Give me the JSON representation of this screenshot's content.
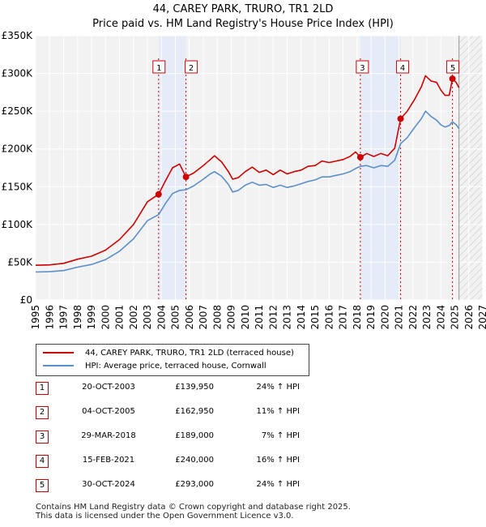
{
  "chart_data": {
    "type": "line",
    "title": "44, CAREY PARK, TRURO, TR1 2LD",
    "subtitle": "Price paid vs. HM Land Registry's House Price Index (HPI)",
    "xlabel": "",
    "ylabel": "",
    "xlim": [
      1995,
      2027
    ],
    "ylim": [
      0,
      350000
    ],
    "y_ticks": [
      0,
      50000,
      100000,
      150000,
      200000,
      250000,
      300000,
      350000
    ],
    "y_tick_labels": [
      "£0",
      "£50K",
      "£100K",
      "£150K",
      "£200K",
      "£250K",
      "£300K",
      "£350K"
    ],
    "x_ticks": [
      1995,
      1996,
      1997,
      1998,
      1999,
      2000,
      2001,
      2002,
      2003,
      2004,
      2005,
      2006,
      2007,
      2008,
      2009,
      2010,
      2011,
      2012,
      2013,
      2014,
      2015,
      2016,
      2017,
      2018,
      2019,
      2020,
      2021,
      2022,
      2023,
      2024,
      2025,
      2026,
      2027
    ],
    "grid": true,
    "forecast_start": 2025.3,
    "shaded_periods": [
      [
        2003.8,
        2005.76
      ],
      [
        2018.24,
        2021.12
      ]
    ],
    "series": [
      {
        "name": "44, CAREY PARK, TRURO, TR1 2LD (terraced house)",
        "color": "#cc0000",
        "points": [
          [
            1995.0,
            46000
          ],
          [
            1996.0,
            46500
          ],
          [
            1997.0,
            48500
          ],
          [
            1998.0,
            54000
          ],
          [
            1999.0,
            58000
          ],
          [
            2000.0,
            66000
          ],
          [
            2001.0,
            80000
          ],
          [
            2002.0,
            100000
          ],
          [
            2003.0,
            130000
          ],
          [
            2003.8,
            139950
          ],
          [
            2004.3,
            158000
          ],
          [
            2004.8,
            175000
          ],
          [
            2005.3,
            180000
          ],
          [
            2005.76,
            162950
          ],
          [
            2006.3,
            168000
          ],
          [
            2007.0,
            178000
          ],
          [
            2007.5,
            186000
          ],
          [
            2007.8,
            191000
          ],
          [
            2008.3,
            183000
          ],
          [
            2008.8,
            170000
          ],
          [
            2009.1,
            160000
          ],
          [
            2009.5,
            162000
          ],
          [
            2010.0,
            170000
          ],
          [
            2010.5,
            176000
          ],
          [
            2011.0,
            169000
          ],
          [
            2011.5,
            172000
          ],
          [
            2012.0,
            166000
          ],
          [
            2012.5,
            172000
          ],
          [
            2013.0,
            167000
          ],
          [
            2013.5,
            170000
          ],
          [
            2014.0,
            172000
          ],
          [
            2014.5,
            177000
          ],
          [
            2015.0,
            178000
          ],
          [
            2015.5,
            184000
          ],
          [
            2016.0,
            182000
          ],
          [
            2016.5,
            184000
          ],
          [
            2017.0,
            186000
          ],
          [
            2017.5,
            190000
          ],
          [
            2017.9,
            196000
          ],
          [
            2018.24,
            189000
          ],
          [
            2018.7,
            194000
          ],
          [
            2019.2,
            190000
          ],
          [
            2019.7,
            194000
          ],
          [
            2020.2,
            191000
          ],
          [
            2020.7,
            201000
          ],
          [
            2021.12,
            240000
          ],
          [
            2021.6,
            250000
          ],
          [
            2022.1,
            265000
          ],
          [
            2022.6,
            282000
          ],
          [
            2022.9,
            297000
          ],
          [
            2023.3,
            290000
          ],
          [
            2023.7,
            288000
          ],
          [
            2024.0,
            278000
          ],
          [
            2024.3,
            271000
          ],
          [
            2024.6,
            271000
          ],
          [
            2024.83,
            293000
          ],
          [
            2025.1,
            288000
          ],
          [
            2025.3,
            281000
          ]
        ]
      },
      {
        "name": "HPI: Average price, terraced house, Cornwall",
        "color": "#5b8fc9",
        "points": [
          [
            1995.0,
            37000
          ],
          [
            1996.0,
            37500
          ],
          [
            1997.0,
            39000
          ],
          [
            1998.0,
            43500
          ],
          [
            1999.0,
            47000
          ],
          [
            2000.0,
            53500
          ],
          [
            2001.0,
            64500
          ],
          [
            2002.0,
            81000
          ],
          [
            2003.0,
            105000
          ],
          [
            2003.8,
            113000
          ],
          [
            2004.3,
            128000
          ],
          [
            2004.8,
            141000
          ],
          [
            2005.3,
            145000
          ],
          [
            2005.76,
            146000
          ],
          [
            2006.3,
            151000
          ],
          [
            2007.0,
            160000
          ],
          [
            2007.5,
            167000
          ],
          [
            2007.8,
            170000
          ],
          [
            2008.3,
            164000
          ],
          [
            2008.8,
            153000
          ],
          [
            2009.1,
            143000
          ],
          [
            2009.5,
            145000
          ],
          [
            2010.0,
            152000
          ],
          [
            2010.5,
            156000
          ],
          [
            2011.0,
            152000
          ],
          [
            2011.5,
            153000
          ],
          [
            2012.0,
            149000
          ],
          [
            2012.5,
            152000
          ],
          [
            2013.0,
            149000
          ],
          [
            2013.5,
            151000
          ],
          [
            2014.0,
            154000
          ],
          [
            2014.5,
            157000
          ],
          [
            2015.0,
            159000
          ],
          [
            2015.5,
            163000
          ],
          [
            2016.0,
            163000
          ],
          [
            2016.5,
            165000
          ],
          [
            2017.0,
            167000
          ],
          [
            2017.5,
            170000
          ],
          [
            2017.9,
            174000
          ],
          [
            2018.24,
            177000
          ],
          [
            2018.7,
            178000
          ],
          [
            2019.2,
            175000
          ],
          [
            2019.7,
            178000
          ],
          [
            2020.2,
            177000
          ],
          [
            2020.7,
            185000
          ],
          [
            2021.12,
            207000
          ],
          [
            2021.6,
            215000
          ],
          [
            2022.1,
            228000
          ],
          [
            2022.6,
            240000
          ],
          [
            2022.9,
            250000
          ],
          [
            2023.3,
            243000
          ],
          [
            2023.7,
            238000
          ],
          [
            2024.0,
            232000
          ],
          [
            2024.3,
            229000
          ],
          [
            2024.6,
            231000
          ],
          [
            2024.83,
            236000
          ],
          [
            2025.1,
            232000
          ],
          [
            2025.3,
            227000
          ]
        ]
      }
    ],
    "transactions": [
      {
        "num": "1",
        "x": 2003.8,
        "value": 139950,
        "date": "20-OCT-2003",
        "price": "£139,950",
        "hpi": "24% ↑ HPI"
      },
      {
        "num": "2",
        "x": 2005.76,
        "value": 162950,
        "date": "04-OCT-2005",
        "price": "£162,950",
        "hpi": "11% ↑ HPI"
      },
      {
        "num": "3",
        "x": 2018.24,
        "value": 189000,
        "date": "29-MAR-2018",
        "price": "£189,000",
        "hpi": "7% ↑ HPI"
      },
      {
        "num": "4",
        "x": 2021.12,
        "value": 240000,
        "date": "15-FEB-2021",
        "price": "£240,000",
        "hpi": "16% ↑ HPI"
      },
      {
        "num": "5",
        "x": 2024.83,
        "value": 293000,
        "date": "30-OCT-2024",
        "price": "£293,000",
        "hpi": "24% ↑ HPI"
      }
    ]
  },
  "legend": {
    "line1": "44, CAREY PARK, TRURO, TR1 2LD (terraced house)",
    "line2": "HPI: Average price, terraced house, Cornwall"
  },
  "footer": {
    "line1": "Contains HM Land Registry data © Crown copyright and database right 2025.",
    "line2": "This data is licensed under the Open Government Licence v3.0."
  }
}
